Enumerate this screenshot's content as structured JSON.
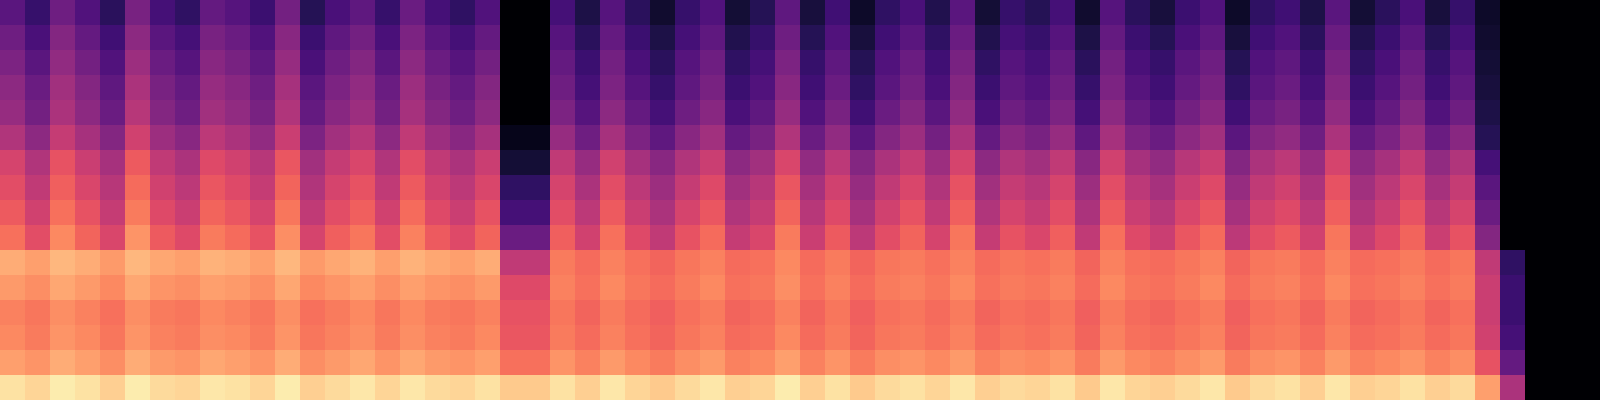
{
  "chart_data": {
    "type": "heatmap",
    "color": "magma",
    "tick_labels": false,
    "value_range": [
      -80,
      0
    ],
    "cells": [
      [
        -58,
        -65,
        -54,
        -60,
        -67,
        -52,
        -62,
        -66,
        -56,
        -59,
        -64,
        -53,
        -68,
        -61,
        -57,
        -65,
        -55,
        -62,
        -66,
        -60,
        -80,
        -80,
        -62,
        -70,
        -59,
        -67,
        -73,
        -65,
        -60,
        -72,
        -68,
        -57,
        -71,
        -63,
        -74,
        -66,
        -61,
        -69,
        -58,
        -72,
        -65,
        -68,
        -62,
        -73,
        -59,
        -67,
        -71,
        -64,
        -60,
        -74,
        -66,
        -63,
        -70,
        -58,
        -72,
        -67,
        -61,
        -71,
        -65,
        -74,
        -80,
        -80,
        -80,
        -80
      ],
      [
        -54,
        -61,
        -50,
        -56,
        -63,
        -48,
        -58,
        -62,
        -52,
        -55,
        -60,
        -49,
        -64,
        -57,
        -53,
        -61,
        -51,
        -58,
        -62,
        -56,
        -80,
        -80,
        -59,
        -67,
        -56,
        -64,
        -70,
        -62,
        -57,
        -69,
        -65,
        -54,
        -68,
        -60,
        -71,
        -63,
        -58,
        -66,
        -55,
        -69,
        -62,
        -65,
        -59,
        -70,
        -56,
        -64,
        -68,
        -61,
        -57,
        -71,
        -63,
        -60,
        -67,
        -55,
        -69,
        -64,
        -58,
        -68,
        -62,
        -73,
        -80,
        -80,
        -80,
        -80
      ],
      [
        -51,
        -58,
        -47,
        -53,
        -60,
        -45,
        -55,
        -59,
        -49,
        -52,
        -57,
        -46,
        -61,
        -54,
        -50,
        -58,
        -48,
        -55,
        -59,
        -53,
        -80,
        -80,
        -56,
        -64,
        -53,
        -61,
        -67,
        -59,
        -54,
        -66,
        -62,
        -51,
        -65,
        -57,
        -68,
        -60,
        -55,
        -63,
        -52,
        -66,
        -59,
        -62,
        -56,
        -67,
        -53,
        -61,
        -65,
        -58,
        -54,
        -68,
        -60,
        -57,
        -64,
        -52,
        -66,
        -61,
        -55,
        -65,
        -59,
        -72,
        -80,
        -80,
        -80,
        -80
      ],
      [
        -48,
        -55,
        -44,
        -50,
        -57,
        -42,
        -52,
        -56,
        -46,
        -49,
        -54,
        -43,
        -58,
        -51,
        -47,
        -55,
        -45,
        -52,
        -56,
        -50,
        -80,
        -80,
        -54,
        -62,
        -51,
        -59,
        -65,
        -57,
        -52,
        -64,
        -60,
        -49,
        -63,
        -55,
        -66,
        -58,
        -53,
        -61,
        -50,
        -64,
        -57,
        -60,
        -54,
        -65,
        -51,
        -59,
        -63,
        -56,
        -52,
        -66,
        -58,
        -55,
        -62,
        -50,
        -64,
        -59,
        -53,
        -63,
        -57,
        -71,
        -80,
        -80,
        -80,
        -80
      ],
      [
        -46,
        -53,
        -42,
        -48,
        -55,
        -40,
        -50,
        -54,
        -44,
        -47,
        -52,
        -41,
        -56,
        -49,
        -45,
        -53,
        -43,
        -50,
        -54,
        -48,
        -80,
        -80,
        -51,
        -59,
        -48,
        -56,
        -62,
        -54,
        -49,
        -61,
        -57,
        -46,
        -60,
        -52,
        -63,
        -55,
        -50,
        -58,
        -47,
        -61,
        -54,
        -57,
        -51,
        -62,
        -48,
        -56,
        -60,
        -53,
        -49,
        -63,
        -55,
        -52,
        -59,
        -47,
        -61,
        -56,
        -50,
        -60,
        -54,
        -70,
        -80,
        -80,
        -80,
        -80
      ],
      [
        -41,
        -48,
        -37,
        -43,
        -50,
        -35,
        -45,
        -49,
        -39,
        -42,
        -47,
        -36,
        -51,
        -44,
        -40,
        -48,
        -38,
        -45,
        -49,
        -43,
        -76,
        -76,
        -46,
        -54,
        -43,
        -51,
        -57,
        -49,
        -44,
        -56,
        -52,
        -41,
        -55,
        -47,
        -58,
        -50,
        -45,
        -53,
        -42,
        -56,
        -49,
        -52,
        -46,
        -57,
        -43,
        -51,
        -55,
        -48,
        -44,
        -58,
        -50,
        -47,
        -54,
        -42,
        -56,
        -51,
        -45,
        -55,
        -49,
        -68,
        -80,
        -80,
        -80,
        -80
      ],
      [
        -34,
        -41,
        -30,
        -36,
        -43,
        -28,
        -38,
        -42,
        -32,
        -35,
        -40,
        -29,
        -44,
        -37,
        -33,
        -41,
        -31,
        -38,
        -42,
        -36,
        -72,
        -72,
        -38,
        -46,
        -35,
        -43,
        -49,
        -41,
        -36,
        -48,
        -44,
        -33,
        -47,
        -39,
        -50,
        -42,
        -37,
        -45,
        -34,
        -48,
        -41,
        -44,
        -38,
        -49,
        -35,
        -43,
        -47,
        -40,
        -36,
        -50,
        -42,
        -39,
        -46,
        -34,
        -48,
        -43,
        -37,
        -47,
        -41,
        -62,
        -80,
        -80,
        -80,
        -80
      ],
      [
        -31,
        -38,
        -27,
        -33,
        -40,
        -25,
        -35,
        -39,
        -29,
        -32,
        -37,
        -26,
        -41,
        -34,
        -30,
        -38,
        -28,
        -35,
        -39,
        -33,
        -66,
        -66,
        -34,
        -42,
        -31,
        -39,
        -45,
        -37,
        -32,
        -44,
        -40,
        -29,
        -43,
        -35,
        -46,
        -38,
        -33,
        -41,
        -30,
        -44,
        -37,
        -40,
        -34,
        -45,
        -31,
        -39,
        -43,
        -36,
        -32,
        -46,
        -38,
        -35,
        -42,
        -30,
        -44,
        -39,
        -33,
        -43,
        -37,
        -58,
        -80,
        -80,
        -80,
        -80
      ],
      [
        -28,
        -35,
        -24,
        -30,
        -37,
        -22,
        -32,
        -36,
        -26,
        -29,
        -34,
        -23,
        -38,
        -31,
        -27,
        -35,
        -25,
        -32,
        -36,
        -30,
        -62,
        -62,
        -31,
        -39,
        -28,
        -36,
        -42,
        -34,
        -29,
        -41,
        -37,
        -26,
        -40,
        -32,
        -43,
        -35,
        -30,
        -38,
        -27,
        -41,
        -34,
        -37,
        -31,
        -42,
        -28,
        -36,
        -40,
        -33,
        -29,
        -43,
        -35,
        -32,
        -39,
        -27,
        -41,
        -36,
        -30,
        -40,
        -34,
        -55,
        -80,
        -80,
        -80,
        -80
      ],
      [
        -24,
        -31,
        -20,
        -26,
        -33,
        -18,
        -28,
        -32,
        -22,
        -25,
        -30,
        -19,
        -34,
        -27,
        -23,
        -31,
        -21,
        -28,
        -32,
        -26,
        -55,
        -55,
        -27,
        -35,
        -24,
        -32,
        -38,
        -30,
        -25,
        -37,
        -33,
        -22,
        -36,
        -28,
        -39,
        -31,
        -26,
        -34,
        -23,
        -37,
        -30,
        -33,
        -27,
        -38,
        -24,
        -32,
        -36,
        -29,
        -25,
        -39,
        -31,
        -28,
        -35,
        -23,
        -37,
        -32,
        -26,
        -36,
        -30,
        -50,
        -80,
        -80,
        -80,
        -80
      ],
      [
        -14,
        -16,
        -12,
        -14,
        -17,
        -12,
        -15,
        -16,
        -13,
        -14,
        -16,
        -12,
        -17,
        -15,
        -13,
        -16,
        -13,
        -15,
        -16,
        -14,
        -38,
        -38,
        -22,
        -25,
        -21,
        -24,
        -26,
        -23,
        -21,
        -25,
        -24,
        -20,
        -25,
        -22,
        -26,
        -23,
        -22,
        -24,
        -21,
        -25,
        -23,
        -24,
        -22,
        -26,
        -21,
        -24,
        -25,
        -23,
        -21,
        -26,
        -23,
        -22,
        -25,
        -21,
        -25,
        -24,
        -22,
        -25,
        -23,
        -38,
        -66,
        -80,
        -80,
        -80
      ],
      [
        -17,
        -19,
        -15,
        -17,
        -20,
        -15,
        -18,
        -19,
        -16,
        -17,
        -19,
        -15,
        -20,
        -18,
        -16,
        -19,
        -16,
        -18,
        -19,
        -17,
        -32,
        -32,
        -21,
        -24,
        -20,
        -23,
        -25,
        -22,
        -20,
        -24,
        -23,
        -19,
        -24,
        -21,
        -25,
        -22,
        -21,
        -23,
        -20,
        -24,
        -22,
        -23,
        -21,
        -25,
        -20,
        -23,
        -24,
        -22,
        -20,
        -25,
        -22,
        -21,
        -24,
        -20,
        -24,
        -23,
        -21,
        -24,
        -22,
        -36,
        -64,
        -80,
        -80,
        -80
      ],
      [
        -21,
        -23,
        -19,
        -21,
        -24,
        -19,
        -22,
        -23,
        -20,
        -21,
        -23,
        -19,
        -24,
        -22,
        -20,
        -23,
        -20,
        -22,
        -23,
        -21,
        -30,
        -30,
        -23,
        -26,
        -22,
        -25,
        -27,
        -24,
        -22,
        -26,
        -25,
        -21,
        -26,
        -23,
        -27,
        -24,
        -23,
        -25,
        -22,
        -26,
        -24,
        -25,
        -23,
        -27,
        -22,
        -25,
        -26,
        -24,
        -22,
        -27,
        -24,
        -23,
        -26,
        -22,
        -26,
        -25,
        -23,
        -26,
        -24,
        -36,
        -64,
        -80,
        -80,
        -80
      ],
      [
        -20,
        -22,
        -18,
        -20,
        -23,
        -18,
        -21,
        -22,
        -19,
        -20,
        -22,
        -18,
        -23,
        -21,
        -19,
        -22,
        -19,
        -21,
        -22,
        -20,
        -29,
        -29,
        -22,
        -25,
        -21,
        -24,
        -26,
        -23,
        -21,
        -25,
        -24,
        -20,
        -25,
        -22,
        -26,
        -23,
        -22,
        -24,
        -21,
        -25,
        -23,
        -24,
        -22,
        -26,
        -21,
        -24,
        -25,
        -23,
        -21,
        -26,
        -23,
        -22,
        -25,
        -21,
        -25,
        -24,
        -22,
        -25,
        -23,
        -35,
        -62,
        -80,
        -80,
        -80
      ],
      [
        -16,
        -18,
        -14,
        -16,
        -19,
        -14,
        -17,
        -18,
        -15,
        -16,
        -18,
        -14,
        -19,
        -17,
        -15,
        -18,
        -15,
        -17,
        -18,
        -16,
        -24,
        -24,
        -18,
        -21,
        -17,
        -20,
        -22,
        -19,
        -17,
        -21,
        -20,
        -16,
        -21,
        -18,
        -22,
        -19,
        -18,
        -20,
        -17,
        -21,
        -19,
        -20,
        -18,
        -22,
        -17,
        -20,
        -21,
        -19,
        -17,
        -22,
        -19,
        -18,
        -21,
        -17,
        -21,
        -20,
        -18,
        -21,
        -19,
        -30,
        -56,
        -80,
        -80,
        -80
      ],
      [
        -5,
        -7,
        -3,
        -5,
        -8,
        -3,
        -6,
        -7,
        -4,
        -5,
        -7,
        -3,
        -8,
        -6,
        -4,
        -7,
        -4,
        -6,
        -7,
        -5,
        -9,
        -9,
        -5,
        -8,
        -4,
        -7,
        -9,
        -6,
        -4,
        -8,
        -7,
        -3,
        -8,
        -5,
        -9,
        -6,
        -5,
        -7,
        -4,
        -8,
        -6,
        -7,
        -5,
        -9,
        -4,
        -7,
        -8,
        -6,
        -4,
        -9,
        -6,
        -5,
        -8,
        -4,
        -8,
        -7,
        -5,
        -8,
        -6,
        -16,
        -42,
        -80,
        -80,
        -80
      ]
    ]
  }
}
